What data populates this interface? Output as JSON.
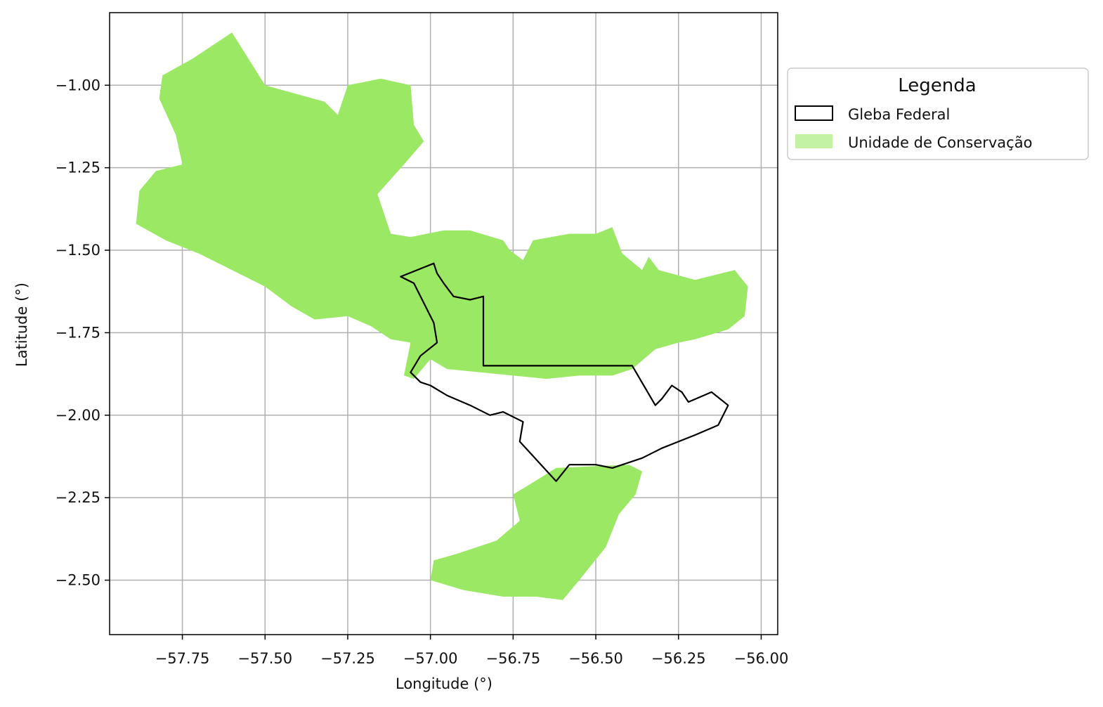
{
  "colors": {
    "conservation_fill": "#9be865",
    "conservation_legend_fill": "#c3f2a3",
    "gleba_stroke": "#000000",
    "grid": "#b0b0b0"
  },
  "axes": {
    "xlabel": "Longitude (°)",
    "ylabel": "Latitude (°)",
    "xlim": [
      -57.97,
      -55.95
    ],
    "ylim": [
      -2.665,
      -0.78
    ],
    "grid": true,
    "x_ticks": [
      -57.75,
      -57.5,
      -57.25,
      -57.0,
      -56.75,
      -56.5,
      -56.25,
      -56.0
    ],
    "x_tick_labels": [
      "−57.75",
      "−57.50",
      "−57.25",
      "−57.00",
      "−56.75",
      "−56.50",
      "−56.25",
      "−56.00"
    ],
    "y_ticks": [
      -1.0,
      -1.25,
      -1.5,
      -1.75,
      -2.0,
      -2.25,
      -2.5
    ],
    "y_tick_labels": [
      "−1.00",
      "−1.25",
      "−1.50",
      "−1.75",
      "−2.00",
      "−2.25",
      "−2.50"
    ]
  },
  "legend": {
    "title": "Legenda",
    "placement": "outside right, top",
    "items": [
      {
        "label": "Gleba Federal",
        "style": "outline"
      },
      {
        "label": "Unidade de Conservação",
        "style": "filled"
      }
    ]
  },
  "layers": {
    "conservation_units": [
      {
        "name": "",
        "coords": [
          [
            -57.6,
            -0.84
          ],
          [
            -57.5,
            -1.0
          ],
          [
            -57.32,
            -1.05
          ],
          [
            -57.28,
            -1.09
          ],
          [
            -57.25,
            -1.0
          ],
          [
            -57.15,
            -0.98
          ],
          [
            -57.06,
            -1.0
          ],
          [
            -57.05,
            -1.12
          ],
          [
            -57.02,
            -1.17
          ],
          [
            -57.08,
            -1.24
          ],
          [
            -57.16,
            -1.33
          ],
          [
            -57.12,
            -1.45
          ],
          [
            -57.06,
            -1.46
          ],
          [
            -56.96,
            -1.44
          ],
          [
            -56.88,
            -1.44
          ],
          [
            -56.78,
            -1.47
          ],
          [
            -56.76,
            -1.5
          ],
          [
            -56.72,
            -1.53
          ],
          [
            -56.69,
            -1.47
          ],
          [
            -56.58,
            -1.45
          ],
          [
            -56.5,
            -1.45
          ],
          [
            -56.45,
            -1.43
          ],
          [
            -56.42,
            -1.51
          ],
          [
            -56.36,
            -1.56
          ],
          [
            -56.34,
            -1.52
          ],
          [
            -56.31,
            -1.56
          ],
          [
            -56.2,
            -1.59
          ],
          [
            -56.08,
            -1.56
          ],
          [
            -56.04,
            -1.61
          ],
          [
            -56.05,
            -1.7
          ],
          [
            -56.1,
            -1.74
          ],
          [
            -56.2,
            -1.77
          ],
          [
            -56.25,
            -1.78
          ],
          [
            -56.32,
            -1.8
          ],
          [
            -56.39,
            -1.86
          ],
          [
            -56.45,
            -1.88
          ],
          [
            -56.55,
            -1.88
          ],
          [
            -56.65,
            -1.89
          ],
          [
            -56.75,
            -1.88
          ],
          [
            -56.85,
            -1.87
          ],
          [
            -56.95,
            -1.86
          ],
          [
            -57.0,
            -1.83
          ],
          [
            -57.05,
            -1.89
          ],
          [
            -57.08,
            -1.88
          ],
          [
            -57.06,
            -1.78
          ],
          [
            -57.12,
            -1.77
          ],
          [
            -57.18,
            -1.73
          ],
          [
            -57.25,
            -1.7
          ],
          [
            -57.35,
            -1.71
          ],
          [
            -57.42,
            -1.67
          ],
          [
            -57.5,
            -1.61
          ],
          [
            -57.6,
            -1.56
          ],
          [
            -57.7,
            -1.51
          ],
          [
            -57.8,
            -1.47
          ],
          [
            -57.89,
            -1.42
          ],
          [
            -57.88,
            -1.32
          ],
          [
            -57.83,
            -1.26
          ],
          [
            -57.75,
            -1.24
          ],
          [
            -57.77,
            -1.15
          ],
          [
            -57.82,
            -1.04
          ],
          [
            -57.81,
            -0.97
          ],
          [
            -57.72,
            -0.92
          ]
        ]
      },
      {
        "name": "",
        "coords": [
          [
            -56.62,
            -2.16
          ],
          [
            -56.4,
            -2.15
          ],
          [
            -56.36,
            -2.17
          ],
          [
            -56.38,
            -2.24
          ],
          [
            -56.43,
            -2.3
          ],
          [
            -56.47,
            -2.4
          ],
          [
            -56.55,
            -2.5
          ],
          [
            -56.6,
            -2.56
          ],
          [
            -56.68,
            -2.55
          ],
          [
            -56.78,
            -2.55
          ],
          [
            -56.9,
            -2.53
          ],
          [
            -57.0,
            -2.5
          ],
          [
            -56.99,
            -2.44
          ],
          [
            -56.92,
            -2.42
          ],
          [
            -56.8,
            -2.38
          ],
          [
            -56.73,
            -2.32
          ],
          [
            -56.75,
            -2.24
          ],
          [
            -56.7,
            -2.21
          ]
        ]
      }
    ],
    "gleba_federal": {
      "name": "",
      "coords": [
        [
          -56.99,
          -1.54
        ],
        [
          -56.98,
          -1.57
        ],
        [
          -56.96,
          -1.6
        ],
        [
          -56.93,
          -1.64
        ],
        [
          -56.88,
          -1.65
        ],
        [
          -56.84,
          -1.64
        ],
        [
          -56.84,
          -1.85
        ],
        [
          -56.39,
          -1.85
        ],
        [
          -56.32,
          -1.97
        ],
        [
          -56.3,
          -1.95
        ],
        [
          -56.27,
          -1.91
        ],
        [
          -56.24,
          -1.93
        ],
        [
          -56.22,
          -1.96
        ],
        [
          -56.15,
          -1.93
        ],
        [
          -56.1,
          -1.97
        ],
        [
          -56.13,
          -2.03
        ],
        [
          -56.2,
          -2.06
        ],
        [
          -56.3,
          -2.1
        ],
        [
          -56.36,
          -2.13
        ],
        [
          -56.45,
          -2.16
        ],
        [
          -56.5,
          -2.15
        ],
        [
          -56.58,
          -2.15
        ],
        [
          -56.62,
          -2.2
        ],
        [
          -56.73,
          -2.08
        ],
        [
          -56.72,
          -2.02
        ],
        [
          -56.78,
          -1.99
        ],
        [
          -56.82,
          -2.0
        ],
        [
          -56.88,
          -1.97
        ],
        [
          -56.95,
          -1.94
        ],
        [
          -57.0,
          -1.91
        ],
        [
          -57.03,
          -1.9
        ],
        [
          -57.06,
          -1.87
        ],
        [
          -57.03,
          -1.82
        ],
        [
          -56.98,
          -1.78
        ],
        [
          -56.99,
          -1.72
        ],
        [
          -57.02,
          -1.66
        ],
        [
          -57.05,
          -1.6
        ],
        [
          -57.09,
          -1.58
        ]
      ]
    }
  }
}
